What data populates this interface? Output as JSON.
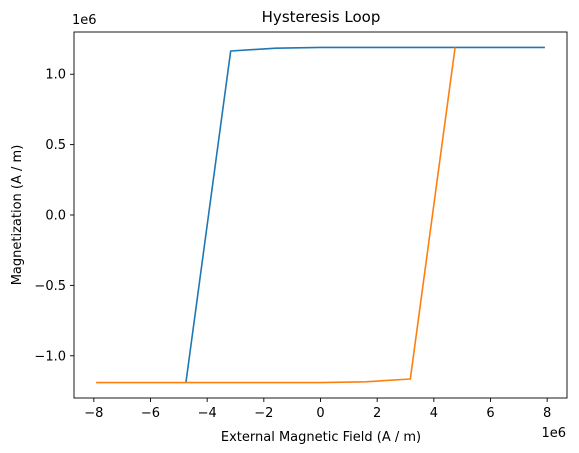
{
  "chart_data": {
    "type": "line",
    "title": "Hysteresis Loop",
    "xlabel": "External Magnetic Field (A / m)",
    "ylabel": "Magnetization (A / m)",
    "x_offset_label": "1e6",
    "y_offset_label": "1e6",
    "xlim": [
      -8.7,
      8.7
    ],
    "ylim": [
      -1.3,
      1.3
    ],
    "x_ticks": [
      -8,
      -6,
      -4,
      -2,
      0,
      2,
      4,
      6,
      8
    ],
    "x_tick_labels": [
      "−8",
      "−6",
      "−4",
      "−2",
      "0",
      "2",
      "4",
      "6",
      "8"
    ],
    "y_ticks": [
      -1.0,
      -0.5,
      0.0,
      0.5,
      1.0
    ],
    "y_tick_labels": [
      "−1.0",
      "−0.5",
      "0.0",
      "0.5",
      "1.0"
    ],
    "grid": false,
    "units_scale": "values in units of 1e6",
    "series": [
      {
        "color": "#1f77b4",
        "x": [
          -4.75,
          -3.17,
          -1.58,
          0,
          1.58,
          3.17,
          4.75,
          6.33,
          7.92
        ],
        "y": [
          -1.19,
          1.165,
          1.185,
          1.19,
          1.19,
          1.19,
          1.19,
          1.19,
          1.19
        ]
      },
      {
        "color": "#ff7f0e",
        "x": [
          -7.92,
          -6.33,
          -4.75,
          -3.17,
          -1.58,
          0,
          1.58,
          3.17,
          4.75
        ],
        "y": [
          -1.19,
          -1.19,
          -1.19,
          -1.19,
          -1.19,
          -1.19,
          -1.185,
          -1.165,
          1.19
        ]
      }
    ]
  }
}
